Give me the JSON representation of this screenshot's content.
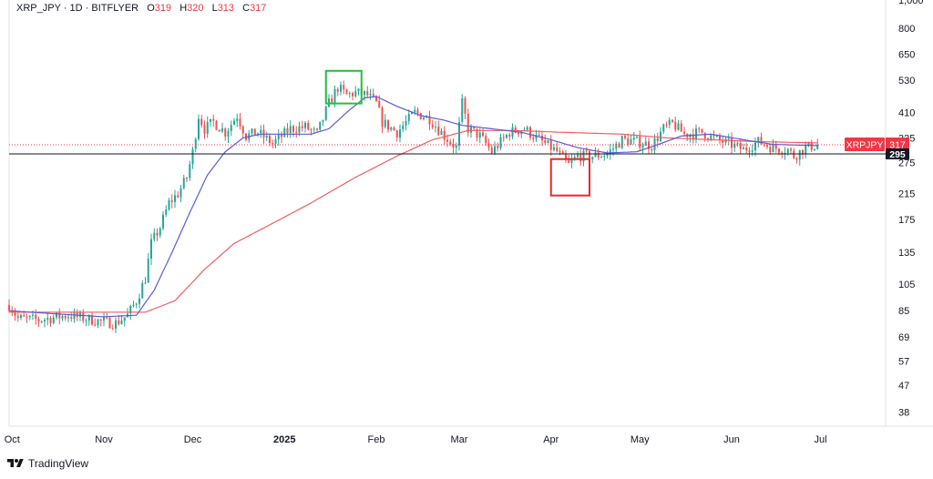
{
  "legend": {
    "symbol": "XRP_JPY",
    "interval": "1D",
    "exchange": "BITFLYER",
    "o_label": "O",
    "o_value": "319",
    "h_label": "H",
    "h_value": "320",
    "l_label": "L",
    "l_value": "313",
    "c_label": "C",
    "c_value": "317"
  },
  "brand": {
    "name": "TradingView"
  },
  "colors": {
    "up": "#26a69a",
    "down": "#ef5350",
    "ma_fast": "#5b5bd6",
    "ma_slow": "#f25c66",
    "price_line": "#f23645",
    "level_line": "#131722",
    "box_top": "#22c03a",
    "box_bottom": "#e52b2b"
  },
  "chart_data": {
    "type": "candlestick",
    "title": "",
    "y_scale": "log",
    "ylim": [
      34,
      1000
    ],
    "xlim": [
      "2024-09-30",
      "2025-07-23"
    ],
    "y_ticks": [
      38,
      47,
      57,
      69,
      85,
      105,
      135,
      175,
      215,
      275,
      335,
      410,
      530,
      650,
      800,
      1000
    ],
    "y_tick_labels": [
      "38",
      "47",
      "57",
      "69",
      "85",
      "105",
      "135",
      "175",
      "215",
      "275",
      "335",
      "410",
      "530",
      "650",
      "800",
      "1,000"
    ],
    "x_ticks": [
      {
        "date": "2024-10-01",
        "label": "Oct",
        "bold": false
      },
      {
        "date": "2024-11-01",
        "label": "Nov",
        "bold": false
      },
      {
        "date": "2024-12-01",
        "label": "Dec",
        "bold": false
      },
      {
        "date": "2025-01-01",
        "label": "2025",
        "bold": true
      },
      {
        "date": "2025-02-01",
        "label": "Feb",
        "bold": false
      },
      {
        "date": "2025-03-01",
        "label": "Mar",
        "bold": false
      },
      {
        "date": "2025-04-01",
        "label": "Apr",
        "bold": false
      },
      {
        "date": "2025-05-01",
        "label": "May",
        "bold": false
      },
      {
        "date": "2025-06-01",
        "label": "Jun",
        "bold": false
      },
      {
        "date": "2025-07-01",
        "label": "Jul",
        "bold": false
      }
    ],
    "price_path": [
      [
        "2024-09-30",
        89
      ],
      [
        "2024-10-03",
        80
      ],
      [
        "2024-10-10",
        79
      ],
      [
        "2024-10-20",
        82
      ],
      [
        "2024-10-31",
        78
      ],
      [
        "2024-11-05",
        77
      ],
      [
        "2024-11-09",
        82
      ],
      [
        "2024-11-12",
        92
      ],
      [
        "2024-11-15",
        110
      ],
      [
        "2024-11-17",
        145
      ],
      [
        "2024-11-20",
        165
      ],
      [
        "2024-11-23",
        200
      ],
      [
        "2024-11-26",
        215
      ],
      [
        "2024-11-29",
        245
      ],
      [
        "2024-12-01",
        300
      ],
      [
        "2024-12-03",
        400
      ],
      [
        "2024-12-05",
        360
      ],
      [
        "2024-12-08",
        380
      ],
      [
        "2024-12-12",
        350
      ],
      [
        "2024-12-16",
        400
      ],
      [
        "2024-12-19",
        340
      ],
      [
        "2024-12-23",
        350
      ],
      [
        "2024-12-28",
        320
      ],
      [
        "2025-01-03",
        360
      ],
      [
        "2025-01-08",
        365
      ],
      [
        "2025-01-12",
        345
      ],
      [
        "2025-01-14",
        390
      ],
      [
        "2025-01-16",
        440
      ],
      [
        "2025-01-19",
        500
      ],
      [
        "2025-01-22",
        470
      ],
      [
        "2025-01-25",
        480
      ],
      [
        "2025-01-29",
        470
      ],
      [
        "2025-02-01",
        440
      ],
      [
        "2025-02-03",
        380
      ],
      [
        "2025-02-08",
        350
      ],
      [
        "2025-02-14",
        410
      ],
      [
        "2025-02-19",
        390
      ],
      [
        "2025-02-24",
        340
      ],
      [
        "2025-02-28",
        310
      ],
      [
        "2025-03-02",
        440
      ],
      [
        "2025-03-04",
        360
      ],
      [
        "2025-03-08",
        340
      ],
      [
        "2025-03-12",
        300
      ],
      [
        "2025-03-18",
        350
      ],
      [
        "2025-03-23",
        360
      ],
      [
        "2025-03-28",
        330
      ],
      [
        "2025-04-03",
        300
      ],
      [
        "2025-04-07",
        270
      ],
      [
        "2025-04-10",
        290
      ],
      [
        "2025-04-15",
        290
      ],
      [
        "2025-04-20",
        295
      ],
      [
        "2025-04-25",
        330
      ],
      [
        "2025-04-30",
        325
      ],
      [
        "2025-05-05",
        315
      ],
      [
        "2025-05-09",
        360
      ],
      [
        "2025-05-12",
        375
      ],
      [
        "2025-05-16",
        345
      ],
      [
        "2025-05-22",
        350
      ],
      [
        "2025-05-27",
        330
      ],
      [
        "2025-05-31",
        320
      ],
      [
        "2025-06-05",
        305
      ],
      [
        "2025-06-10",
        325
      ],
      [
        "2025-06-15",
        310
      ],
      [
        "2025-06-20",
        305
      ],
      [
        "2025-06-22",
        290
      ],
      [
        "2025-06-26",
        310
      ],
      [
        "2025-06-30",
        317
      ]
    ],
    "ma_fast": [
      [
        "2024-09-30",
        85
      ],
      [
        "2024-10-15",
        83
      ],
      [
        "2024-11-01",
        81
      ],
      [
        "2024-11-12",
        82
      ],
      [
        "2024-11-18",
        100
      ],
      [
        "2024-11-24",
        135
      ],
      [
        "2024-11-30",
        185
      ],
      [
        "2024-12-06",
        250
      ],
      [
        "2024-12-12",
        300
      ],
      [
        "2024-12-18",
        335
      ],
      [
        "2024-12-24",
        345
      ],
      [
        "2025-01-01",
        345
      ],
      [
        "2025-01-10",
        345
      ],
      [
        "2025-01-16",
        360
      ],
      [
        "2025-01-22",
        410
      ],
      [
        "2025-01-28",
        460
      ],
      [
        "2025-02-01",
        465
      ],
      [
        "2025-02-08",
        430
      ],
      [
        "2025-02-16",
        400
      ],
      [
        "2025-02-24",
        385
      ],
      [
        "2025-03-02",
        370
      ],
      [
        "2025-03-12",
        360
      ],
      [
        "2025-03-22",
        350
      ],
      [
        "2025-04-01",
        330
      ],
      [
        "2025-04-10",
        310
      ],
      [
        "2025-04-20",
        297
      ],
      [
        "2025-04-30",
        300
      ],
      [
        "2025-05-08",
        320
      ],
      [
        "2025-05-15",
        340
      ],
      [
        "2025-05-25",
        345
      ],
      [
        "2025-06-05",
        330
      ],
      [
        "2025-06-15",
        318
      ],
      [
        "2025-06-30",
        315
      ]
    ],
    "ma_slow": [
      [
        "2024-09-30",
        84
      ],
      [
        "2024-10-20",
        84
      ],
      [
        "2024-11-05",
        84
      ],
      [
        "2024-11-15",
        84
      ],
      [
        "2024-11-25",
        92
      ],
      [
        "2024-12-05",
        118
      ],
      [
        "2024-12-15",
        145
      ],
      [
        "2024-12-28",
        170
      ],
      [
        "2025-01-10",
        200
      ],
      [
        "2025-01-25",
        245
      ],
      [
        "2025-02-08",
        290
      ],
      [
        "2025-02-20",
        330
      ],
      [
        "2025-03-04",
        355
      ],
      [
        "2025-03-20",
        355
      ],
      [
        "2025-04-05",
        350
      ],
      [
        "2025-04-25",
        345
      ],
      [
        "2025-05-10",
        335
      ],
      [
        "2025-05-25",
        330
      ],
      [
        "2025-06-10",
        325
      ],
      [
        "2025-06-30",
        322
      ]
    ],
    "current_price": 317,
    "price_label": "XRPJPY",
    "price_value_label": "317",
    "level": 295,
    "level_label": "295",
    "annotations": [
      {
        "type": "box",
        "color": "green",
        "date_from": "2025-01-15",
        "date_to": "2025-01-27",
        "price_low": 440,
        "price_high": 570
      },
      {
        "type": "box",
        "color": "red",
        "date_from": "2025-04-01",
        "date_to": "2025-04-14",
        "price_low": 212,
        "price_high": 283
      }
    ]
  }
}
